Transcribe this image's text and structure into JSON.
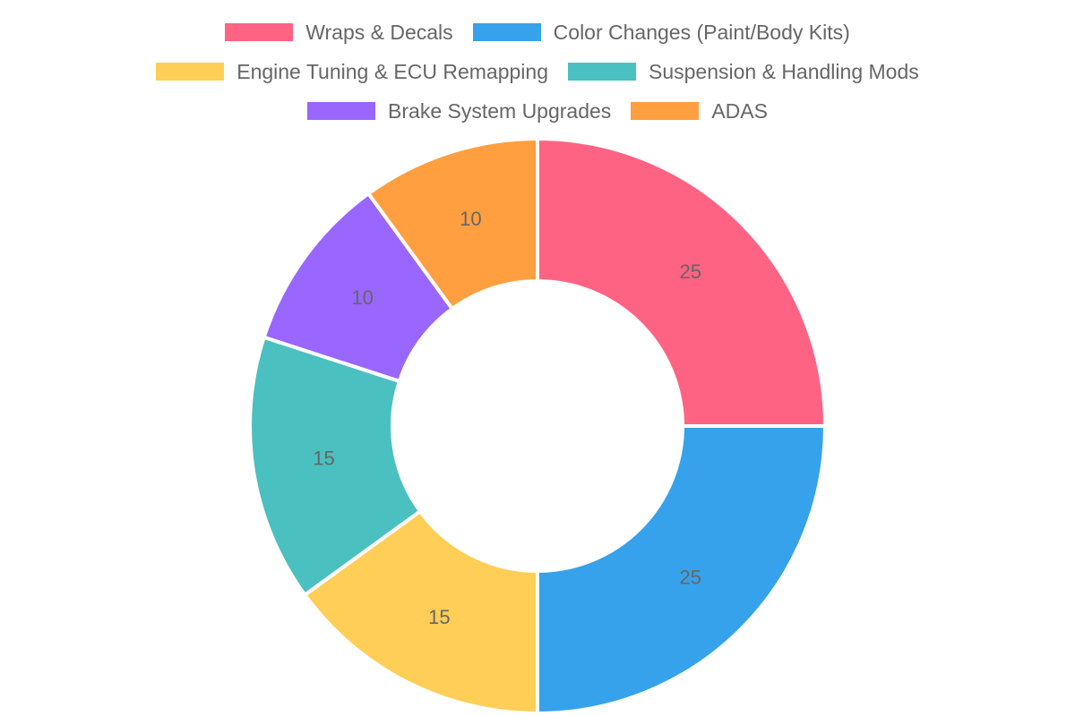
{
  "chart_data": {
    "type": "pie",
    "variant": "donut",
    "categories": [
      "Wraps & Decals",
      "Color Changes (Paint/Body Kits)",
      "Engine Tuning & ECU Remapping",
      "Suspension & Handling Mods",
      "Brake System Upgrades",
      "ADAS"
    ],
    "values": [
      25,
      25,
      15,
      15,
      10,
      10
    ],
    "colors": [
      "#ff6384",
      "#36a2eb",
      "#ffce56",
      "#4bc0c0",
      "#9966ff",
      "#ff9f40"
    ],
    "data_labels": [
      "25",
      "25",
      "15",
      "15",
      "10",
      "10"
    ],
    "legend_position": "top",
    "title": ""
  }
}
